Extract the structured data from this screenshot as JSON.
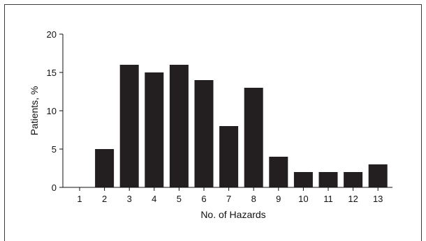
{
  "chart_data": {
    "type": "bar",
    "title": "",
    "xlabel": "No. of Hazards",
    "ylabel": "Patients, %",
    "categories": [
      "1",
      "2",
      "3",
      "4",
      "5",
      "6",
      "7",
      "8",
      "9",
      "10",
      "11",
      "12",
      "13"
    ],
    "values": [
      0,
      5,
      16,
      15,
      16,
      14,
      8,
      13,
      4,
      2,
      2,
      2,
      3
    ],
    "ylim": [
      0,
      20
    ],
    "yticks": [
      0,
      5,
      10,
      15,
      20
    ],
    "grid": false,
    "bar_color": "#231f20"
  }
}
